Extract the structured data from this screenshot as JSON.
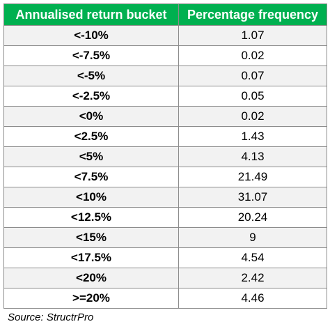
{
  "chart_data": {
    "type": "table",
    "columns": [
      "Annualised return bucket",
      "Percentage frequency"
    ],
    "rows": [
      [
        "<-10%",
        "1.07"
      ],
      [
        "<-7.5%",
        "0.02"
      ],
      [
        "<-5%",
        "0.07"
      ],
      [
        "<-2.5%",
        "0.05"
      ],
      [
        "<0%",
        "0.02"
      ],
      [
        "<2.5%",
        "1.43"
      ],
      [
        "<5%",
        "4.13"
      ],
      [
        "<7.5%",
        "21.49"
      ],
      [
        "<10%",
        "31.07"
      ],
      [
        "<12.5%",
        "20.24"
      ],
      [
        "<15%",
        "9"
      ],
      [
        "<17.5%",
        "4.54"
      ],
      [
        "<20%",
        "2.42"
      ],
      [
        ">=20%",
        "4.46"
      ]
    ],
    "source": "Source: StructrPro"
  },
  "colors": {
    "header_bg": "#00b050",
    "header_text": "#ffffff",
    "stripe": "#f2f2f2",
    "border": "#8c8c8c"
  }
}
